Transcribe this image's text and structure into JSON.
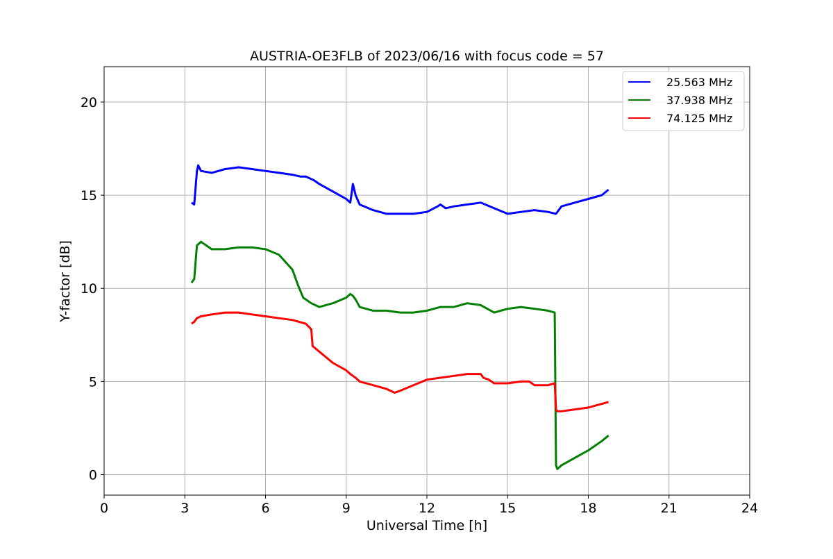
{
  "chart_data": {
    "type": "line",
    "title": "AUSTRIA-OE3FLB of 2023/06/16 with focus code = 57",
    "xlabel": "Universal Time [h]",
    "ylabel": "Y-factor [dB]",
    "xlim": [
      0,
      24
    ],
    "ylim": [
      -1.1,
      21.9
    ],
    "xticks": [
      0,
      3,
      6,
      9,
      12,
      15,
      18,
      21,
      24
    ],
    "xtick_labels": [
      "0",
      "3",
      "6",
      "9",
      "12",
      "15",
      "18",
      "21",
      "24"
    ],
    "yticks": [
      0,
      5,
      10,
      15,
      20
    ],
    "ytick_labels": [
      "0",
      "5",
      "10",
      "15",
      "20"
    ],
    "grid": true,
    "legend_position": "top-right",
    "series": [
      {
        "name": "25.563 MHz",
        "color": "#0000ff",
        "x": [
          3.25,
          3.35,
          3.45,
          3.5,
          3.6,
          4.0,
          4.5,
          5.0,
          5.5,
          6.0,
          6.5,
          7.0,
          7.3,
          7.5,
          7.8,
          8.0,
          8.5,
          9.0,
          9.15,
          9.25,
          9.35,
          9.5,
          10.0,
          10.5,
          11.0,
          11.5,
          12.0,
          12.4,
          12.5,
          12.7,
          13.0,
          13.5,
          14.0,
          14.5,
          15.0,
          15.5,
          16.0,
          16.5,
          16.8,
          17.0,
          17.5,
          18.0,
          18.5,
          18.75
        ],
        "y": [
          14.6,
          14.5,
          16.3,
          16.6,
          16.3,
          16.2,
          16.4,
          16.5,
          16.4,
          16.3,
          16.2,
          16.1,
          16.0,
          16.0,
          15.8,
          15.6,
          15.2,
          14.8,
          14.6,
          15.6,
          15.0,
          14.5,
          14.2,
          14.0,
          14.0,
          14.0,
          14.1,
          14.4,
          14.5,
          14.3,
          14.4,
          14.5,
          14.6,
          14.3,
          14.0,
          14.1,
          14.2,
          14.1,
          14.0,
          14.4,
          14.6,
          14.8,
          15.0,
          15.3
        ]
      },
      {
        "name": "37.938 MHz",
        "color": "#008000",
        "x": [
          3.25,
          3.35,
          3.45,
          3.6,
          4.0,
          4.5,
          5.0,
          5.5,
          6.0,
          6.5,
          7.0,
          7.2,
          7.4,
          7.7,
          8.0,
          8.5,
          9.0,
          9.15,
          9.25,
          9.35,
          9.5,
          10.0,
          10.5,
          11.0,
          11.5,
          12.0,
          12.5,
          13.0,
          13.5,
          14.0,
          14.5,
          15.0,
          15.5,
          16.0,
          16.5,
          16.75,
          16.8,
          16.85,
          17.0,
          17.5,
          18.0,
          18.5,
          18.75
        ],
        "y": [
          10.3,
          10.5,
          12.3,
          12.5,
          12.1,
          12.1,
          12.2,
          12.2,
          12.1,
          11.8,
          11.0,
          10.2,
          9.5,
          9.2,
          9.0,
          9.2,
          9.5,
          9.7,
          9.6,
          9.4,
          9.0,
          8.8,
          8.8,
          8.7,
          8.7,
          8.8,
          9.0,
          9.0,
          9.2,
          9.1,
          8.7,
          8.9,
          9.0,
          8.9,
          8.8,
          8.7,
          0.5,
          0.3,
          0.5,
          0.9,
          1.3,
          1.8,
          2.1
        ]
      },
      {
        "name": "74.125 MHz",
        "color": "#ff0000",
        "x": [
          3.25,
          3.35,
          3.45,
          3.6,
          4.0,
          4.5,
          5.0,
          5.5,
          6.0,
          6.5,
          7.0,
          7.5,
          7.7,
          7.75,
          8.0,
          8.5,
          9.0,
          9.15,
          9.25,
          9.35,
          9.5,
          10.0,
          10.5,
          10.8,
          11.0,
          11.5,
          12.0,
          12.5,
          13.0,
          13.5,
          14.0,
          14.1,
          14.3,
          14.5,
          15.0,
          15.5,
          15.8,
          16.0,
          16.5,
          16.75,
          16.8,
          16.85,
          17.0,
          17.5,
          18.0,
          18.5,
          18.75
        ],
        "y": [
          8.1,
          8.2,
          8.4,
          8.5,
          8.6,
          8.7,
          8.7,
          8.6,
          8.5,
          8.4,
          8.3,
          8.1,
          7.8,
          6.9,
          6.6,
          6.0,
          5.6,
          5.4,
          5.3,
          5.2,
          5.0,
          4.8,
          4.6,
          4.4,
          4.5,
          4.8,
          5.1,
          5.2,
          5.3,
          5.4,
          5.4,
          5.2,
          5.1,
          4.9,
          4.9,
          5.0,
          5.0,
          4.8,
          4.8,
          4.9,
          3.5,
          3.4,
          3.4,
          3.5,
          3.6,
          3.8,
          3.9
        ]
      }
    ]
  }
}
